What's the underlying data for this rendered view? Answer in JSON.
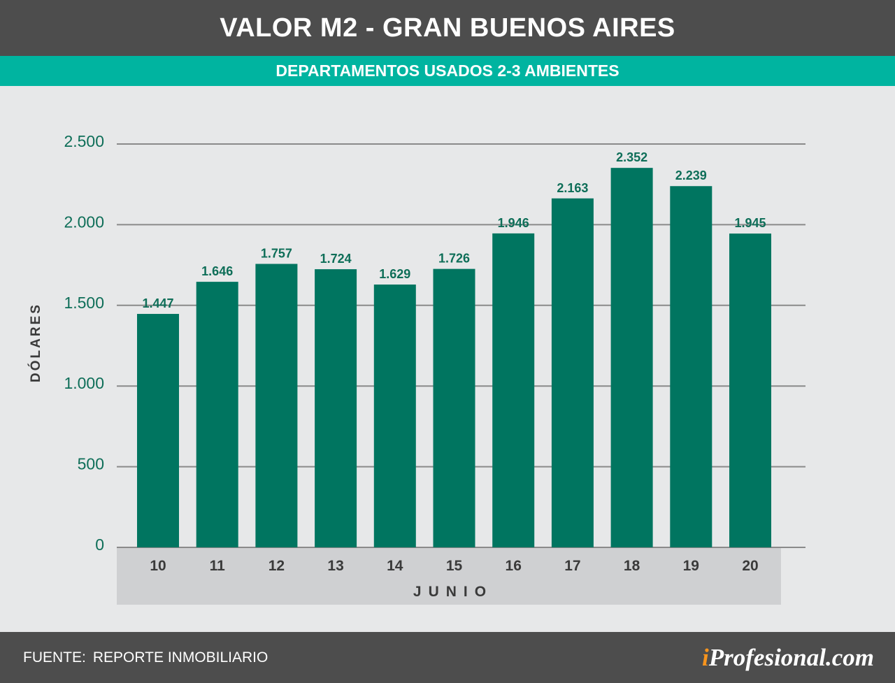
{
  "header": {
    "title": "VALOR M2 - GRAN BUENOS AIRES",
    "subtitle": "DEPARTAMENTOS USADOS 2-3 AMBIENTES"
  },
  "footer": {
    "source_label": "FUENTE:",
    "source_value": "REPORTE INMOBILIARIO",
    "logo_prefix": "i",
    "logo_rest": "Profesional.com"
  },
  "colors": {
    "bar": "#007560",
    "accent": "#00b4a0",
    "header_bg": "#4d4d4d",
    "logo_accent": "#f7941d"
  },
  "chart_data": {
    "type": "bar",
    "title": "VALOR M2 - GRAN BUENOS AIRES",
    "subtitle": "DEPARTAMENTOS USADOS 2-3 AMBIENTES",
    "xlabel": "JUNIO",
    "ylabel": "DÓLARES",
    "categories": [
      "10",
      "11",
      "12",
      "13",
      "14",
      "15",
      "16",
      "17",
      "18",
      "19",
      "20"
    ],
    "values": [
      1447,
      1646,
      1757,
      1724,
      1629,
      1726,
      1946,
      2163,
      2352,
      2239,
      1945
    ],
    "value_labels": [
      "1.447",
      "1.646",
      "1.757",
      "1.724",
      "1.629",
      "1.726",
      "1.946",
      "2.163",
      "2.352",
      "2.239",
      "1.945"
    ],
    "yticks": [
      0,
      500,
      1000,
      1500,
      2000,
      2500
    ],
    "ytick_labels": [
      "0",
      "500",
      "1.000",
      "1.500",
      "2.000",
      "2.500"
    ],
    "ylim": [
      0,
      2500
    ],
    "grid": true,
    "legend": "none"
  }
}
